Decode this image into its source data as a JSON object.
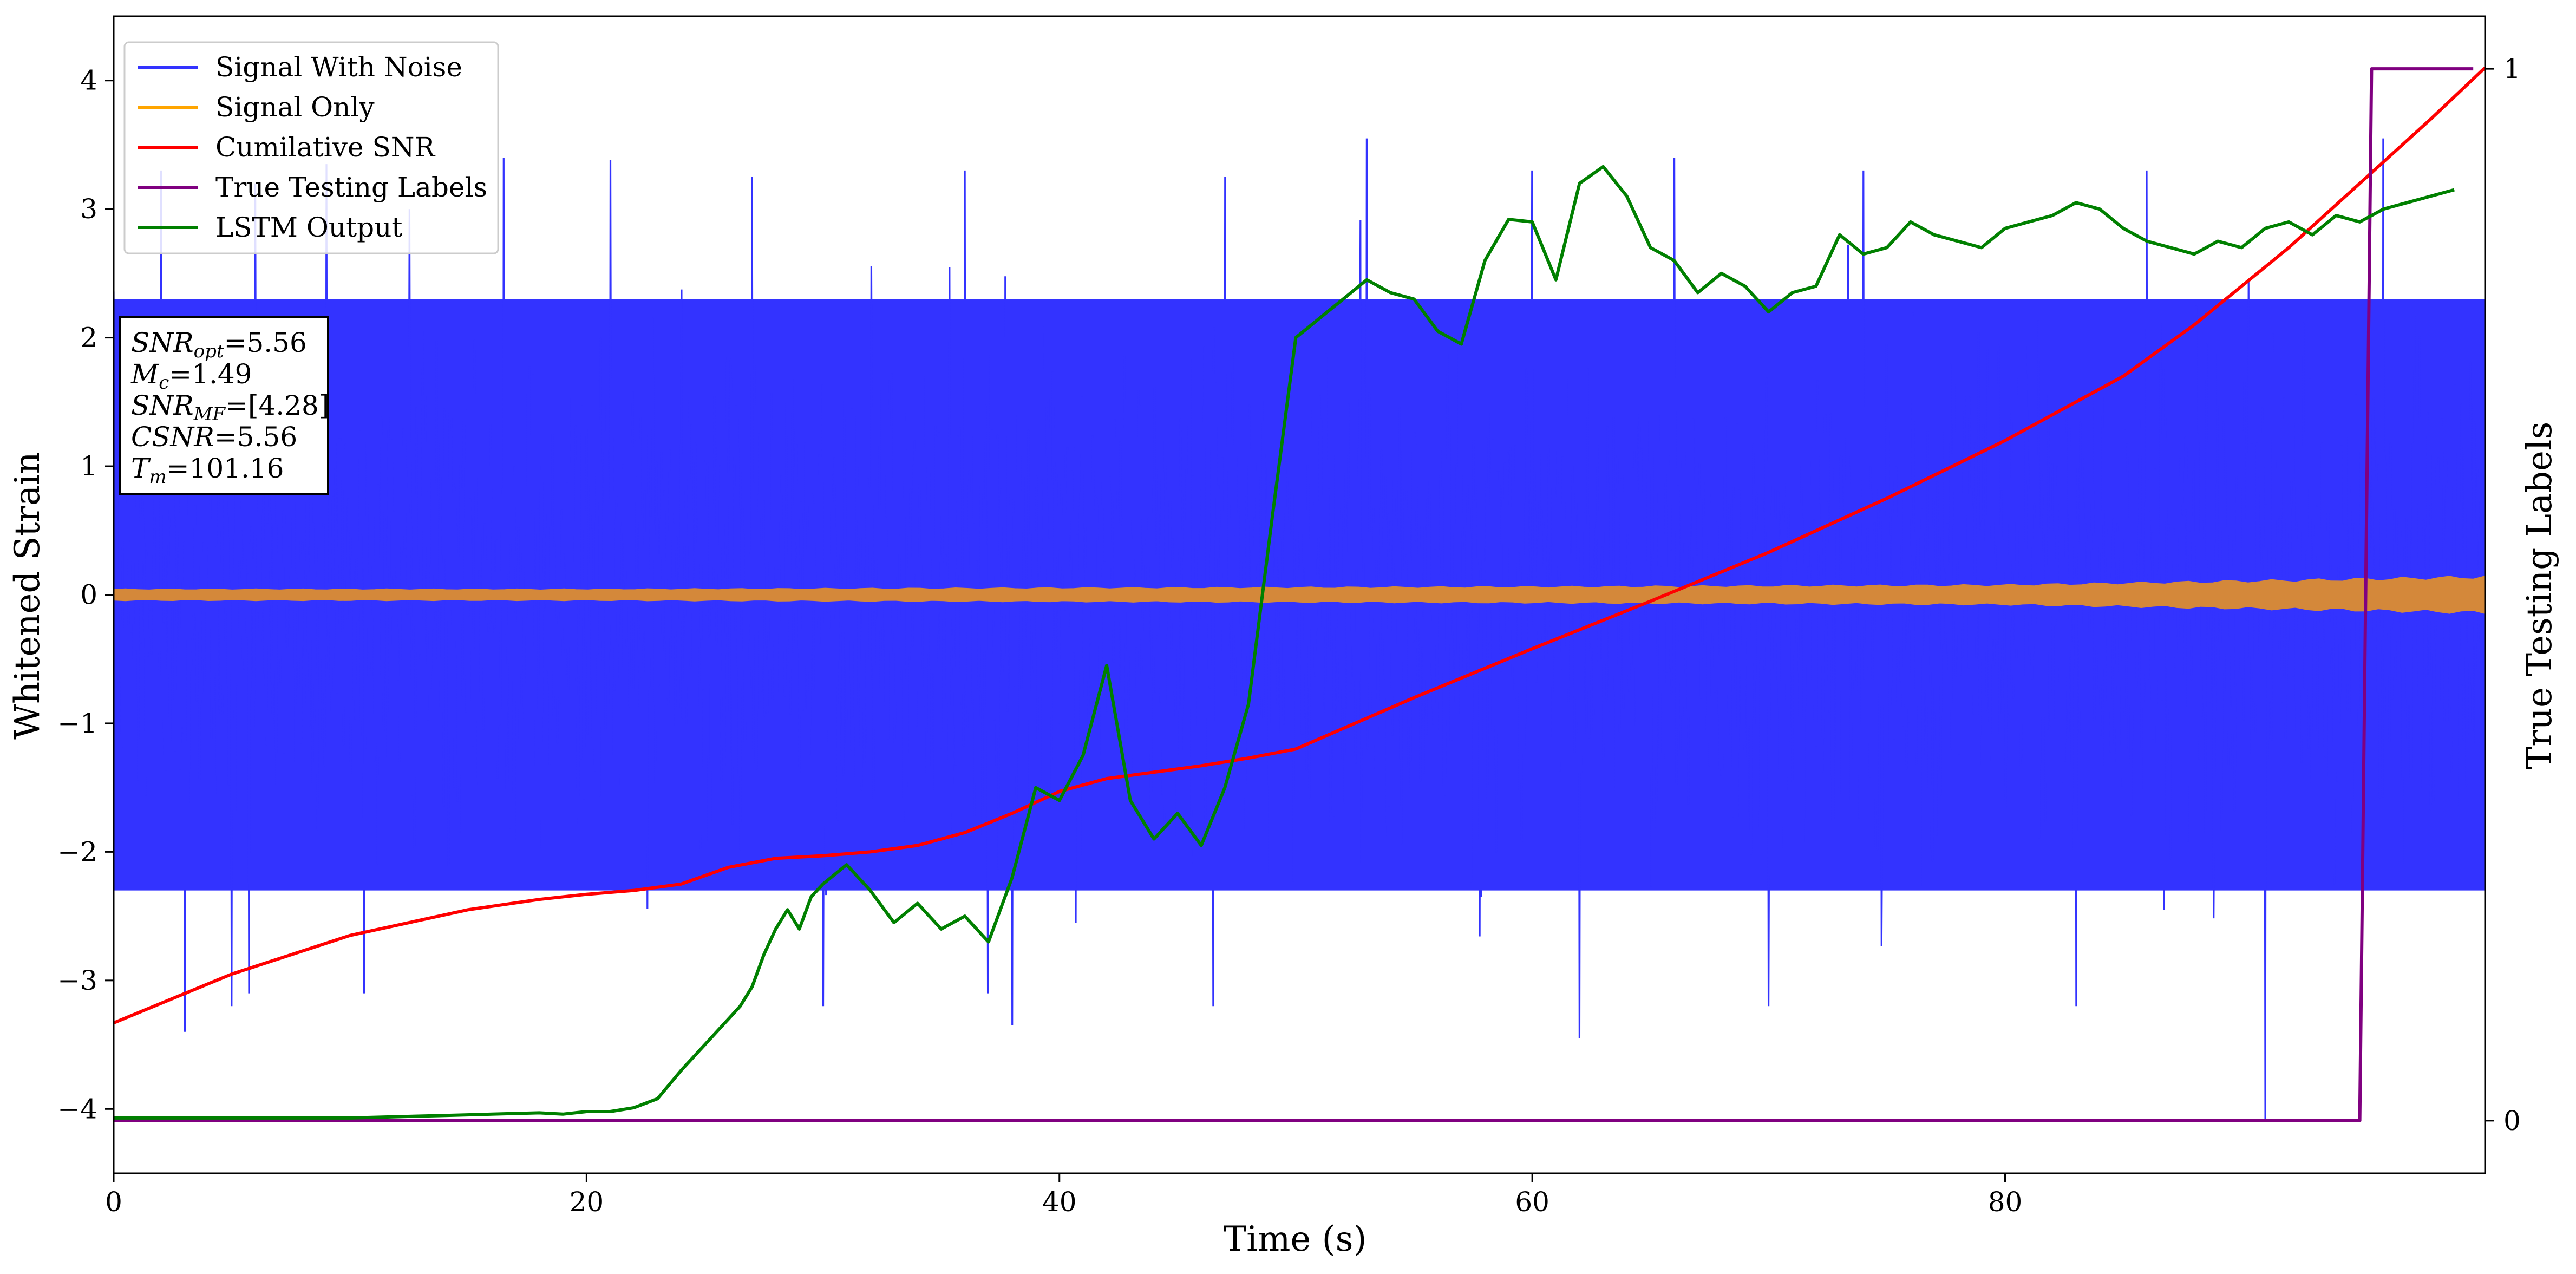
{
  "chart_data": {
    "type": "line",
    "xlabel": "Time (s)",
    "ylabel": "Whitened Strain",
    "y2label": "True Testing Labels",
    "xlim": [
      0,
      100.3
    ],
    "ylim": [
      -4.5,
      4.5
    ],
    "y2lim": [
      -0.05,
      1.05
    ],
    "x_ticks": [
      0,
      20,
      40,
      60,
      80
    ],
    "y_ticks": [
      -4,
      -3,
      -2,
      -1,
      0,
      1,
      2,
      3,
      4
    ],
    "y2_ticks": [
      0,
      1
    ],
    "grid": false,
    "legend_position": "top-left",
    "legend": [
      {
        "name": "Signal With Noise",
        "color": "#3333ff"
      },
      {
        "name": "Signal Only",
        "color": "#ffa500"
      },
      {
        "name": "Cumilative SNR",
        "color": "#ff0000"
      },
      {
        "name": "True Testing Labels",
        "color": "#800080"
      },
      {
        "name": "LSTM Output",
        "color": "#008000"
      }
    ],
    "annotation_lines": [
      "=5.56",
      "=1.49",
      "=[4.28]",
      "=5.56",
      "=101.16"
    ],
    "annotation_symbols": [
      {
        "base": "SNR",
        "sub": "opt"
      },
      {
        "base": "M",
        "sub": "c"
      },
      {
        "base": "SNR",
        "sub": "MF"
      },
      {
        "base": "CSNR",
        "sub": ""
      },
      {
        "base": "T",
        "sub": "m"
      }
    ],
    "series": [
      {
        "name": "Signal With Noise",
        "axis": "left",
        "color": "#3333ff",
        "description": "dense whitened noise, approx. Gaussian, std ~0.9, spanning roughly -3.4 to 3.5 with rare spikes to -4.1",
        "envelope": {
          "upper": 2.3,
          "lower": -2.3
        },
        "peaks_x": [
          2,
          6,
          9,
          12.5,
          16.5,
          21,
          27,
          36,
          47,
          53,
          60,
          66,
          74,
          86,
          96
        ],
        "peaks_y": [
          3.3,
          3.2,
          3.35,
          3.0,
          3.4,
          3.38,
          3.25,
          3.3,
          3.25,
          3.55,
          3.3,
          3.4,
          3.3,
          3.3,
          3.55
        ],
        "troughs_x": [
          3,
          5,
          30,
          38,
          46.5,
          62,
          70,
          83,
          91
        ],
        "troughs_y": [
          -3.4,
          -3.2,
          -3.2,
          -3.35,
          -3.2,
          -3.45,
          -3.2,
          -3.2,
          -4.1
        ]
      },
      {
        "name": "Signal Only",
        "axis": "left",
        "color": "#d4883a",
        "x": [
          0,
          20,
          40,
          60,
          80,
          95,
          100.3
        ],
        "amplitude": [
          0.045,
          0.045,
          0.055,
          0.065,
          0.08,
          0.13,
          0.15
        ]
      },
      {
        "name": "Cumilative SNR",
        "axis": "left",
        "color": "#ff0000",
        "x": [
          0,
          5,
          10,
          15,
          18,
          20,
          22,
          24,
          26,
          28,
          30,
          32,
          34,
          36,
          38,
          40,
          42,
          44,
          46,
          48,
          50,
          55,
          60,
          65,
          70,
          75,
          80,
          85,
          88,
          92,
          95,
          98,
          100.3
        ],
        "y": [
          -3.33,
          -2.95,
          -2.65,
          -2.45,
          -2.37,
          -2.33,
          -2.3,
          -2.25,
          -2.12,
          -2.05,
          -2.03,
          -2.0,
          -1.95,
          -1.85,
          -1.7,
          -1.53,
          -1.43,
          -1.38,
          -1.33,
          -1.27,
          -1.2,
          -0.8,
          -0.42,
          -0.05,
          0.33,
          0.75,
          1.2,
          1.7,
          2.1,
          2.7,
          3.2,
          3.7,
          4.1
        ]
      },
      {
        "name": "True Testing Labels",
        "axis": "right",
        "color": "#800080",
        "x": [
          0,
          95.0,
          95.5,
          99.8
        ],
        "y": [
          0,
          0,
          1,
          1
        ]
      },
      {
        "name": "LSTM Output",
        "axis": "left",
        "color": "#008000",
        "x": [
          0,
          5,
          10,
          12,
          14,
          16,
          18,
          19,
          20,
          21,
          22,
          23,
          24,
          25,
          26,
          26.5,
          27,
          27.5,
          28,
          28.5,
          29,
          29.5,
          30,
          31,
          32,
          33,
          34,
          35,
          36,
          37,
          38,
          39,
          40,
          41,
          42,
          43,
          44,
          45,
          46,
          47,
          48,
          49,
          50,
          51,
          52,
          53,
          54,
          55,
          56,
          57,
          58,
          59,
          60,
          61,
          62,
          63,
          64,
          65,
          66,
          67,
          68,
          69,
          70,
          71,
          72,
          73,
          74,
          75,
          76,
          77,
          78,
          79,
          80,
          81,
          82,
          83,
          84,
          85,
          86,
          87,
          88,
          89,
          90,
          91,
          92,
          93,
          94,
          95,
          96,
          97,
          98,
          99
        ],
        "y": [
          -4.07,
          -4.07,
          -4.07,
          -4.06,
          -4.05,
          -4.04,
          -4.03,
          -4.04,
          -4.02,
          -4.02,
          -3.99,
          -3.92,
          -3.7,
          -3.5,
          -3.3,
          -3.2,
          -3.05,
          -2.8,
          -2.6,
          -2.45,
          -2.6,
          -2.35,
          -2.25,
          -2.1,
          -2.3,
          -2.55,
          -2.4,
          -2.6,
          -2.5,
          -2.7,
          -2.2,
          -1.5,
          -1.6,
          -1.25,
          -0.55,
          -1.6,
          -1.9,
          -1.7,
          -1.95,
          -1.5,
          -0.85,
          0.6,
          2.0,
          2.15,
          2.3,
          2.45,
          2.35,
          2.3,
          2.05,
          1.95,
          2.6,
          2.92,
          2.9,
          2.45,
          3.2,
          3.33,
          3.1,
          2.7,
          2.6,
          2.35,
          2.5,
          2.4,
          2.2,
          2.35,
          2.4,
          2.8,
          2.65,
          2.7,
          2.9,
          2.8,
          2.75,
          2.7,
          2.85,
          2.9,
          2.95,
          3.05,
          3.0,
          2.85,
          2.75,
          2.7,
          2.65,
          2.75,
          2.7,
          2.85,
          2.9,
          2.8,
          2.95,
          2.9,
          3.0,
          3.05,
          3.1,
          3.15
        ]
      }
    ]
  }
}
